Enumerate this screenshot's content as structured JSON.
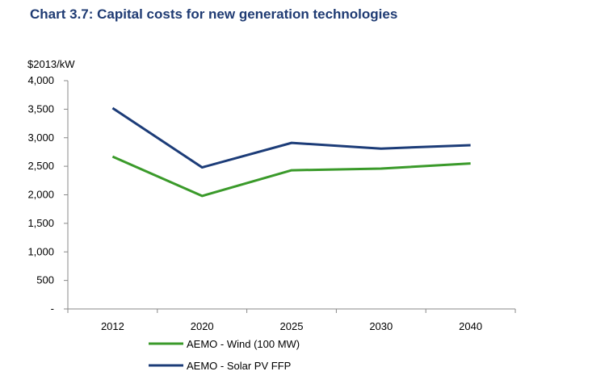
{
  "title": "Chart 3.7: Capital costs for new generation technologies",
  "chart_data": {
    "type": "line",
    "title": "Chart 3.7: Capital costs for new generation technologies",
    "ylabel": "$2013/kW",
    "xlabel": "",
    "categories": [
      "2012",
      "2020",
      "2025",
      "2030",
      "2040"
    ],
    "ylim": [
      0,
      4000
    ],
    "yticks": [
      0,
      500,
      1000,
      1500,
      2000,
      2500,
      3000,
      3500,
      4000
    ],
    "ytick_labels": [
      "-",
      "500",
      "1,000",
      "1,500",
      "2,000",
      "2,500",
      "3,000",
      "3,500",
      "4,000"
    ],
    "grid": false,
    "legend_position": "bottom",
    "series": [
      {
        "name": "AEMO - Wind (100 MW)",
        "color": "#3a9a2a",
        "values": [
          2670,
          1980,
          2430,
          2460,
          2550
        ]
      },
      {
        "name": "AEMO - Solar PV FFP",
        "color": "#1c3c78",
        "values": [
          3520,
          2480,
          2910,
          2810,
          2870
        ]
      }
    ]
  }
}
